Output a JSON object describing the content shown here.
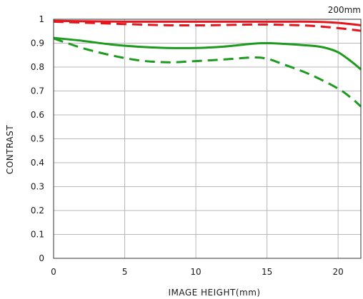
{
  "chart_data": {
    "type": "line",
    "corner_label": "200mm",
    "xlabel": "IMAGE HEIGHT(mm)",
    "ylabel": "CONTRAST",
    "xlim": [
      0,
      21.6
    ],
    "ylim": [
      0,
      1
    ],
    "x_ticks": [
      0,
      5,
      10,
      15,
      20
    ],
    "y_ticks": [
      0,
      0.1,
      0.2,
      0.3,
      0.4,
      0.5,
      0.6,
      0.7,
      0.8,
      0.9,
      1
    ],
    "y_tick_labels": [
      "0",
      "0.1",
      "0.2",
      "0.3",
      "0.4",
      "0.5",
      "0.6",
      "0.7",
      "0.8",
      "0.9",
      "1"
    ],
    "grid": true,
    "series": [
      {
        "color": "#e8141c",
        "dash": "solid",
        "x": [
          0,
          2,
          5,
          8,
          11,
          14,
          16,
          18,
          20,
          21.6
        ],
        "y": [
          0.993,
          0.992,
          0.99,
          0.99,
          0.99,
          0.99,
          0.99,
          0.99,
          0.985,
          0.975
        ]
      },
      {
        "color": "#e8141c",
        "dash": "dashed",
        "x": [
          0,
          2,
          5,
          8,
          11,
          14,
          16,
          18,
          20,
          21.6
        ],
        "y": [
          0.99,
          0.986,
          0.98,
          0.975,
          0.975,
          0.978,
          0.977,
          0.973,
          0.963,
          0.952
        ]
      },
      {
        "color": "#1e9a1e",
        "dash": "solid",
        "x": [
          0,
          2,
          4,
          6,
          8,
          10,
          12,
          14,
          15,
          16,
          18,
          19,
          20,
          21,
          21.6
        ],
        "y": [
          0.922,
          0.91,
          0.895,
          0.885,
          0.88,
          0.88,
          0.886,
          0.898,
          0.9,
          0.898,
          0.89,
          0.882,
          0.862,
          0.82,
          0.79
        ]
      },
      {
        "color": "#1e9a1e",
        "dash": "dashed",
        "x": [
          0,
          2,
          4,
          6,
          8,
          10,
          12,
          14,
          15,
          16,
          18,
          20,
          21,
          21.6
        ],
        "y": [
          0.92,
          0.88,
          0.85,
          0.828,
          0.82,
          0.825,
          0.832,
          0.84,
          0.835,
          0.815,
          0.77,
          0.71,
          0.667,
          0.635
        ]
      }
    ]
  }
}
